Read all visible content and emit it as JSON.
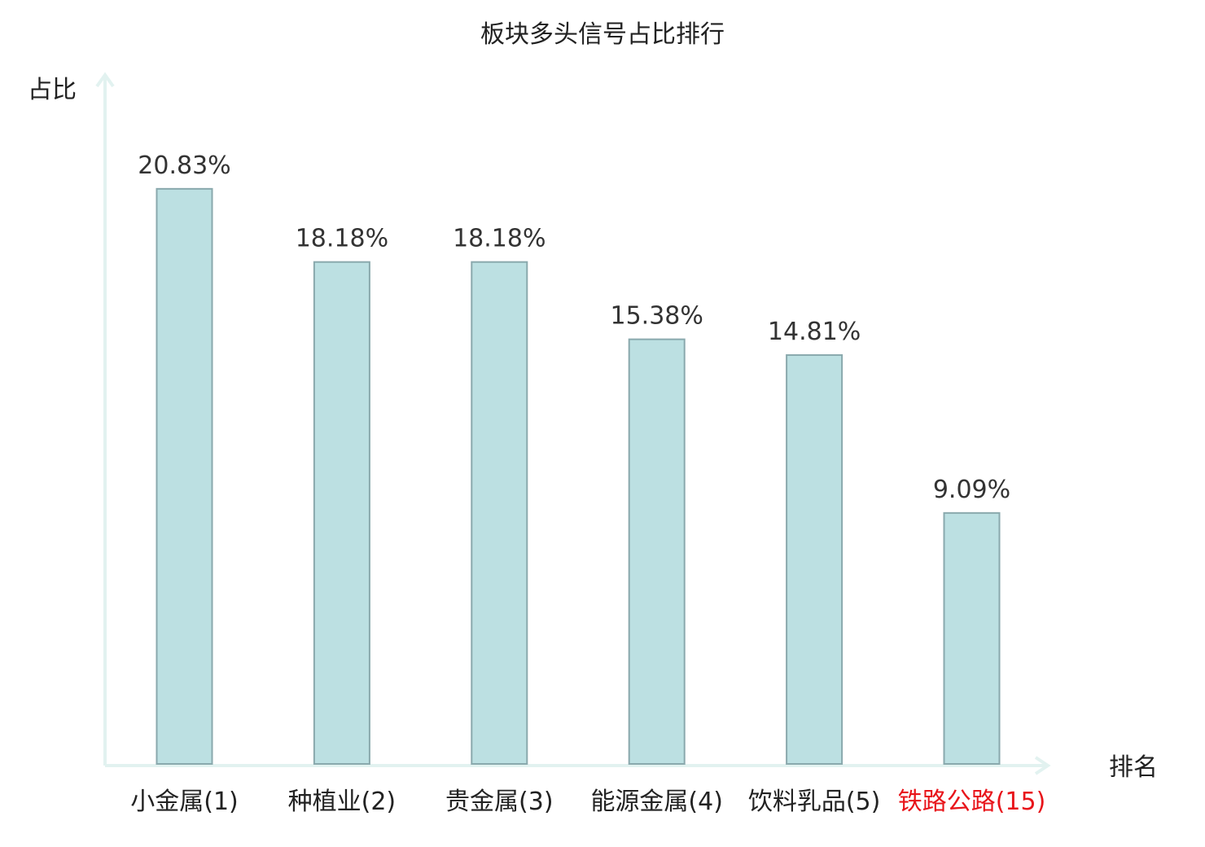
{
  "chart_data": {
    "type": "bar",
    "title": "板块多头信号占比排行",
    "xlabel": "排名",
    "ylabel": "占比",
    "categories": [
      "小金属(1)",
      "种植业(2)",
      "贵金属(3)",
      "能源金属(4)",
      "饮料乳品(5)",
      "铁路公路(15)"
    ],
    "values": [
      20.83,
      18.18,
      18.18,
      15.38,
      14.81,
      9.09
    ],
    "value_labels": [
      "20.83%",
      "18.18%",
      "18.18%",
      "15.38%",
      "14.81%",
      "9.09%"
    ],
    "highlight_index": 5,
    "ylim": [
      0,
      24
    ],
    "grid": false,
    "legend": "none",
    "colors": {
      "bar_fill": "#bce0e2",
      "bar_stroke": "#8aa9ad",
      "axis": "#e2f2f0",
      "label_default": "#222222",
      "label_highlight": "#e8141a"
    }
  }
}
